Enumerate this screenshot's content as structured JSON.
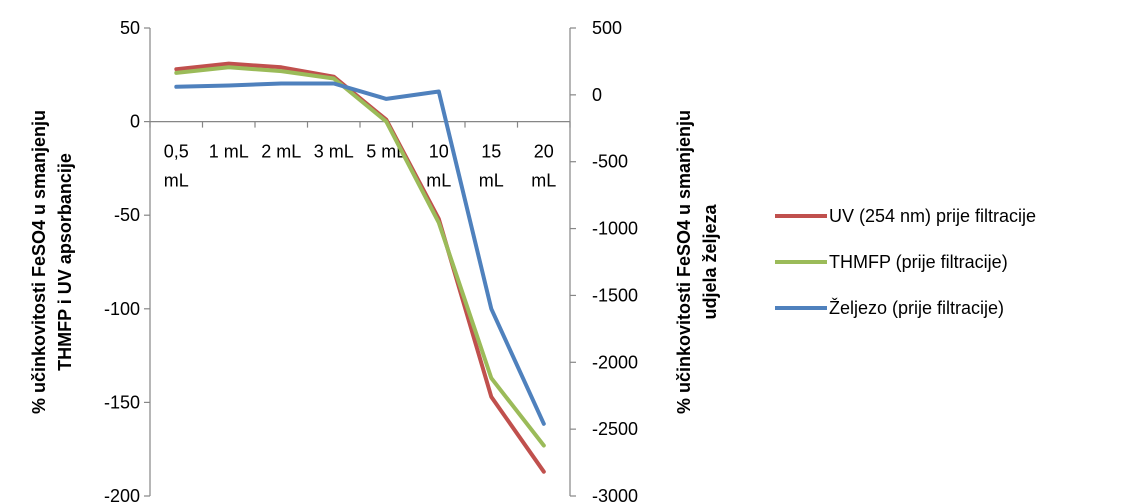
{
  "chart_data": {
    "type": "line",
    "categories": [
      [
        "0,5",
        "mL"
      ],
      [
        "1 mL"
      ],
      [
        "2 mL"
      ],
      [
        "3 mL"
      ],
      [
        "5 mL"
      ],
      [
        "10",
        "mL"
      ],
      [
        "15",
        "mL"
      ],
      [
        "20",
        "mL"
      ]
    ],
    "y_left": {
      "label": [
        "% učinkovitosti FeSO4 u smanjenju",
        "THMFP i UV apsorbancije"
      ],
      "min": -200,
      "max": 50,
      "step": 50,
      "ticks": [
        "50",
        "0",
        "-50",
        "-100",
        "-150",
        "-200"
      ]
    },
    "y_right": {
      "label": [
        "% učinkovitosti FeSO4 u smanjenju",
        "udjela željeza"
      ],
      "min": -3000,
      "max": 500,
      "step": 500,
      "ticks": [
        "500",
        "0",
        "-500",
        "-1000",
        "-1500",
        "-2000",
        "-2500",
        "-3000"
      ]
    },
    "series": [
      {
        "name": "UV (254 nm) prije filtracije",
        "axis": "left",
        "color": "#c0504d",
        "values": [
          28,
          31,
          29,
          24,
          1,
          -52,
          -147,
          -187
        ]
      },
      {
        "name": "THMFP (prije filtracije)",
        "axis": "left",
        "color": "#9bbb59",
        "values": [
          26,
          29,
          27,
          23,
          0,
          -54,
          -137,
          -173
        ]
      },
      {
        "name": "Željezo (prije filtracije)",
        "axis": "right",
        "color": "#4f81bd",
        "values": [
          60,
          70,
          85,
          85,
          -30,
          25,
          -1600,
          -2460
        ]
      }
    ],
    "legend_position": "right",
    "grid": false
  }
}
